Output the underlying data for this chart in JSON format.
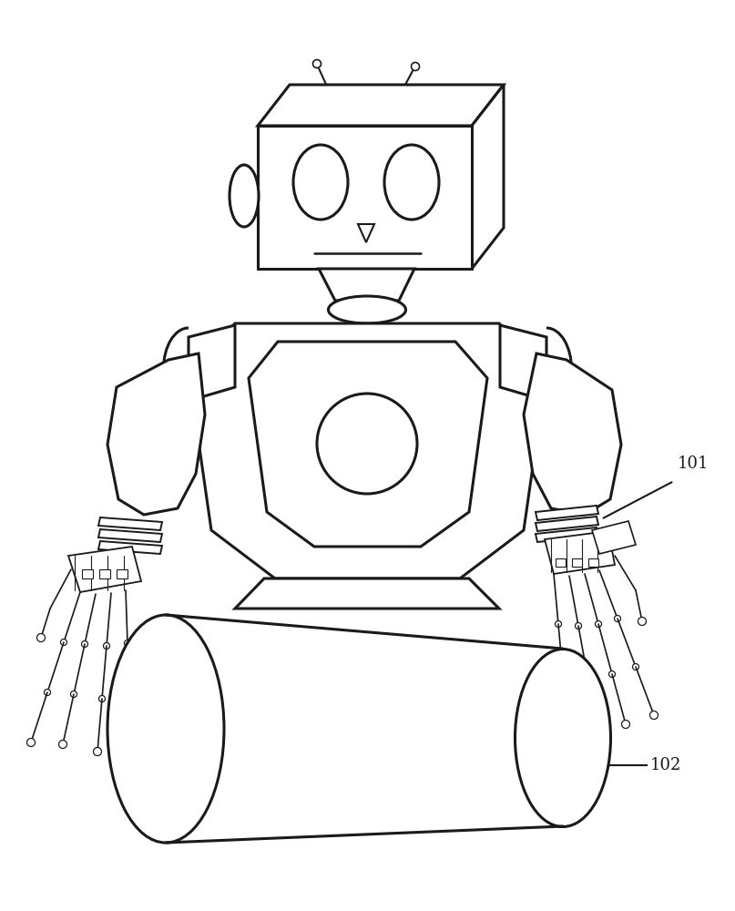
{
  "bg_color": "#ffffff",
  "line_color": "#1a1a1a",
  "line_width": 1.8,
  "label_101": "101",
  "label_102": "102",
  "figsize": [
    8.07,
    10.0
  ],
  "dpi": 100
}
